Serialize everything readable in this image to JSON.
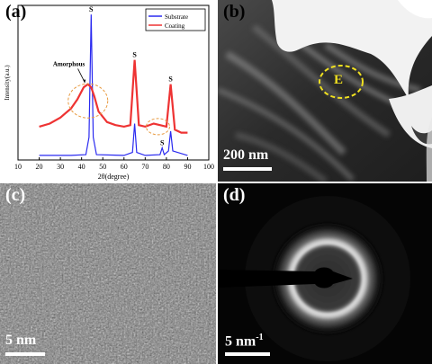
{
  "panels": {
    "a": {
      "label": "(a)"
    },
    "b": {
      "label": "(b)",
      "region_label": "E",
      "scale": "200 nm"
    },
    "c": {
      "label": "(c)",
      "scale": "5 nm"
    },
    "d": {
      "label": "(d)",
      "scale_base": "5 nm",
      "scale_sup": "-1"
    }
  },
  "chart_data": {
    "type": "line",
    "xlabel": "2θ(degree)",
    "ylabel": "Intensity(a.u.)",
    "xlim": [
      10,
      100
    ],
    "xticks": [
      10,
      20,
      30,
      40,
      50,
      60,
      70,
      80,
      90,
      100
    ],
    "legend_position": "top-right",
    "series": [
      {
        "name": "Substrate",
        "color": "#2a2af0",
        "x": [
          20,
          35,
          42,
          43.5,
          44.5,
          45.5,
          47,
          60,
          64,
          65,
          66,
          70,
          77,
          78,
          79,
          81,
          82,
          83,
          90
        ],
        "y": [
          0.3,
          0.3,
          0.35,
          1.5,
          9.6,
          1.5,
          0.35,
          0.3,
          0.5,
          2.4,
          0.5,
          0.3,
          0.35,
          0.8,
          0.35,
          0.6,
          1.9,
          0.6,
          0.3
        ]
      },
      {
        "name": "Coating",
        "color": "#ee3333",
        "x": [
          20,
          25,
          30,
          35,
          38,
          41,
          43,
          44.5,
          46,
          48,
          52,
          56,
          60,
          63,
          65,
          67,
          70,
          74,
          77,
          80,
          82,
          84,
          87,
          90
        ],
        "y": [
          2.2,
          2.4,
          2.8,
          3.4,
          4.0,
          4.8,
          5.0,
          4.8,
          4.2,
          3.2,
          2.5,
          2.3,
          2.2,
          2.3,
          6.6,
          2.3,
          2.2,
          2.4,
          2.3,
          2.2,
          5.0,
          2.0,
          1.8,
          1.8
        ]
      }
    ],
    "annotations": [
      {
        "text": "S",
        "x": 44.5,
        "y": 9.6
      },
      {
        "text": "S",
        "x": 65,
        "y": 6.6
      },
      {
        "text": "S",
        "x": 82,
        "y": 5.0
      },
      {
        "text": "S",
        "x": 78,
        "y": 0.8
      },
      {
        "text": "Amorphous",
        "x": 34,
        "y": 6.2
      }
    ]
  }
}
